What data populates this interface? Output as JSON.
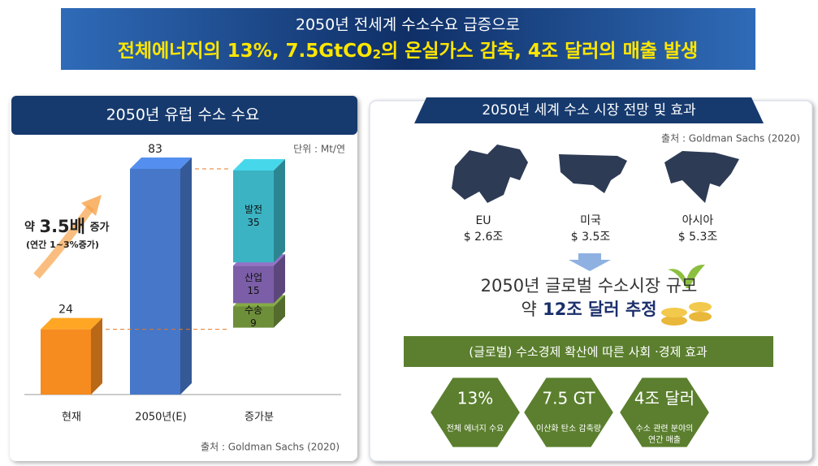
{
  "header": {
    "line1": "2050년 전세계 수소수요 급증으로",
    "line2": [
      "전체에너지의 13%, 7.5GtCO",
      "2",
      "의 온실가스 감축, 4조 달러의 매출 발생"
    ]
  },
  "chart_data": {
    "type": "bar",
    "title": "2050년 유럽 수소 수요",
    "unit": "단위 : Mt/연",
    "bars": [
      {
        "category": "현재",
        "value": 24,
        "color": "#f68b1f"
      },
      {
        "category": "2050년(E)",
        "value": 83,
        "color": "#4677c8"
      },
      {
        "category": "증가분",
        "segments": [
          {
            "name": "수송",
            "value": 9,
            "color": "#6e8f3a"
          },
          {
            "name": "산업",
            "value": 15,
            "color": "#7b5ea7"
          },
          {
            "name": "발전",
            "value": 35,
            "color": "#3bb3c3"
          }
        ]
      }
    ],
    "annotation": [
      "약",
      "3.5배",
      "증가"
    ],
    "annotation_note": "(연간 1~3%증가)",
    "source": "출처 : Goldman Sachs (2020)"
  },
  "market": {
    "title": "2050년 세계 수소 시장 전망 및 효과",
    "source": "출처 : Goldman Sachs (2020)",
    "regions": [
      {
        "name": "EU",
        "value": "$ 2.6조"
      },
      {
        "name": "미국",
        "value": "$ 3.5조"
      },
      {
        "name": "아시아",
        "value": "$ 5.3조"
      }
    ],
    "headline": "2050년 글로벌 수소시장 규모",
    "estimate": [
      "약",
      "12조 달러 추정"
    ],
    "banner": "(글로벌) 수소경제 확산에 따른 사회 ·경제 효과",
    "effects": [
      {
        "value": "13%",
        "label": [
          "전체 에너지 수요"
        ]
      },
      {
        "value": "7.5 GT",
        "label": [
          "이산화 탄소 감축량"
        ]
      },
      {
        "value": "4조 달러",
        "label": [
          "수소 관련 분야의",
          "연간 매출"
        ]
      }
    ]
  }
}
